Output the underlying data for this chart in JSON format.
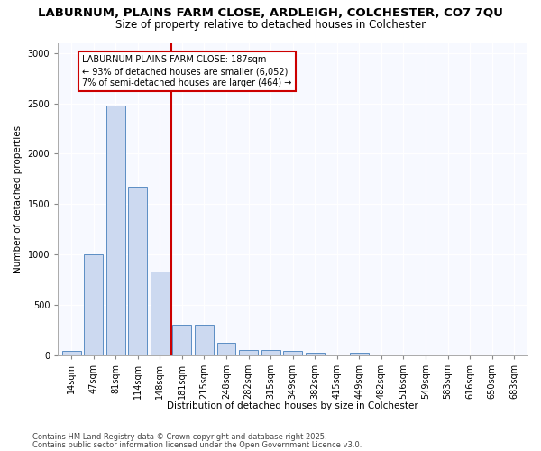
{
  "title1": "LABURNUM, PLAINS FARM CLOSE, ARDLEIGH, COLCHESTER, CO7 7QU",
  "title2": "Size of property relative to detached houses in Colchester",
  "xlabel": "Distribution of detached houses by size in Colchester",
  "ylabel": "Number of detached properties",
  "categories": [
    "14sqm",
    "47sqm",
    "81sqm",
    "114sqm",
    "148sqm",
    "181sqm",
    "215sqm",
    "248sqm",
    "282sqm",
    "315sqm",
    "349sqm",
    "382sqm",
    "415sqm",
    "449sqm",
    "482sqm",
    "516sqm",
    "549sqm",
    "583sqm",
    "616sqm",
    "650sqm",
    "683sqm"
  ],
  "values": [
    42,
    1005,
    2480,
    1670,
    830,
    300,
    300,
    120,
    55,
    52,
    40,
    22,
    0,
    28,
    0,
    0,
    0,
    0,
    0,
    0,
    0
  ],
  "bar_color": "#ccd9f0",
  "bar_edge_color": "#5b8ec4",
  "vline_index": 5,
  "vline_color": "#cc0000",
  "annotation_text": "LABURNUM PLAINS FARM CLOSE: 187sqm\n← 93% of detached houses are smaller (6,052)\n7% of semi-detached houses are larger (464) →",
  "annotation_box_facecolor": "#ffffff",
  "annotation_box_edgecolor": "#cc0000",
  "ylim": [
    0,
    3100
  ],
  "yticks": [
    0,
    500,
    1000,
    1500,
    2000,
    2500,
    3000
  ],
  "footer1": "Contains HM Land Registry data © Crown copyright and database right 2025.",
  "footer2": "Contains public sector information licensed under the Open Government Licence v3.0.",
  "bg_color": "#ffffff",
  "plot_bg_color": "#f7f9ff",
  "grid_color": "#ffffff",
  "title1_fontsize": 9.5,
  "title2_fontsize": 8.5,
  "axis_label_fontsize": 7.5,
  "tick_fontsize": 7,
  "annotation_fontsize": 7,
  "footer_fontsize": 6
}
